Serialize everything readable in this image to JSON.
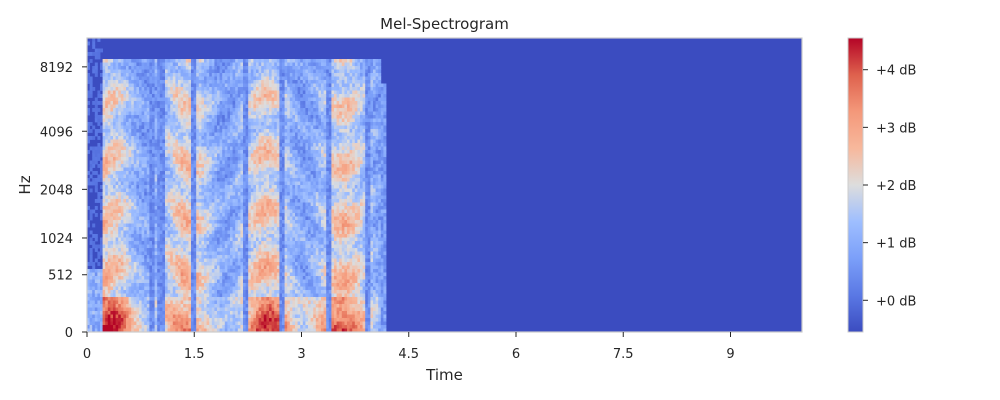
{
  "chart_data": {
    "type": "heatmap",
    "title": "Mel-Spectrogram",
    "xlabel": "Time",
    "ylabel": "Hz",
    "xlim": [
      0,
      10
    ],
    "x_ticks": [
      0,
      1.5,
      3,
      4.5,
      6,
      7.5,
      9
    ],
    "x_tick_labels": [
      "0",
      "1.5",
      "3",
      "4.5",
      "6",
      "7.5",
      "9"
    ],
    "y_scale": "mel",
    "y_ticks": [
      0,
      512,
      1024,
      2048,
      4096,
      8192
    ],
    "y_tick_labels": [
      "0",
      "512",
      "1024",
      "2048",
      "4096",
      "8192"
    ],
    "y_max_hz": 11025,
    "signal_extent_s": [
      0.2,
      4.1
    ],
    "colormap": "coolwarm",
    "colorbar": {
      "range_db": [
        -0.55,
        4.55
      ],
      "ticks": [
        0,
        1,
        2,
        3,
        4
      ],
      "tick_labels": [
        "+0 dB",
        "+1 dB",
        "+2 dB",
        "+3 dB",
        "+4 dB"
      ]
    },
    "grid": false,
    "colors": {
      "low": "#3b4cc0",
      "mid": "#dddddd",
      "high": "#b40426",
      "frame": "#cccccc"
    }
  }
}
